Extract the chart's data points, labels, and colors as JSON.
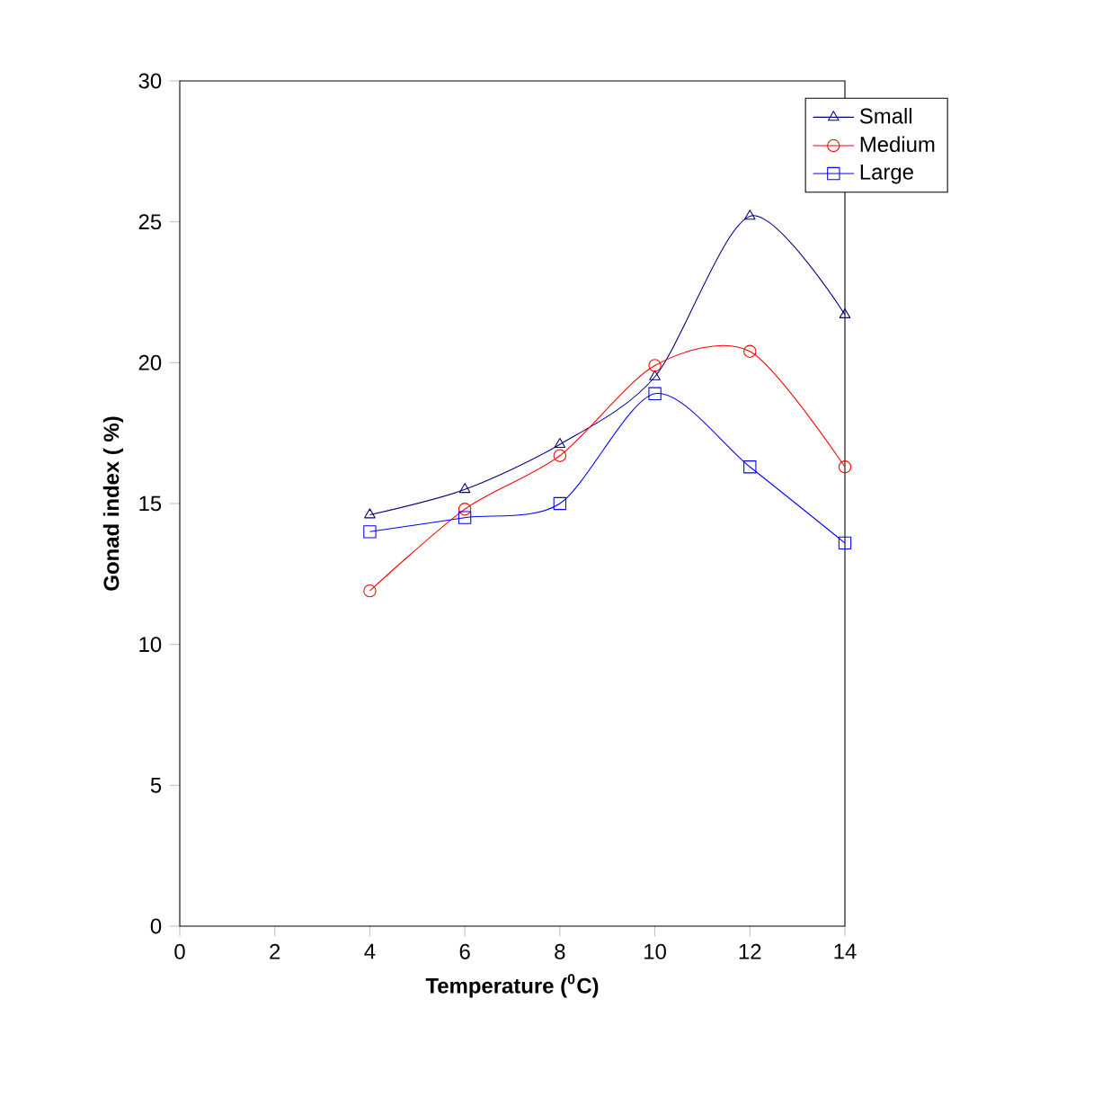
{
  "chart_data": {
    "type": "line",
    "xlabel": "Temperature ($^{0}$C)",
    "ylabel": "Gonad index ( %)",
    "x": [
      4,
      6,
      8,
      10,
      12,
      14
    ],
    "xlim": [
      0,
      14
    ],
    "xticks": [
      0,
      2,
      4,
      6,
      8,
      10,
      12,
      14
    ],
    "ylim": [
      0,
      30
    ],
    "yticks": [
      0,
      5,
      10,
      15,
      20,
      25,
      30
    ],
    "legend": "top right",
    "grid": false,
    "series": [
      {
        "name": "Small",
        "color": "#000080",
        "marker": "triangle",
        "values": [
          14.6,
          15.5,
          17.1,
          19.5,
          25.2,
          21.7
        ]
      },
      {
        "name": "Medium",
        "color": "#ff0000",
        "marker": "circle",
        "values": [
          11.9,
          14.8,
          16.7,
          19.9,
          20.4,
          16.3
        ]
      },
      {
        "name": "Large",
        "color": "#0000ff",
        "marker": "square",
        "values": [
          14.0,
          14.5,
          15.0,
          18.9,
          16.3,
          13.6
        ]
      }
    ]
  }
}
